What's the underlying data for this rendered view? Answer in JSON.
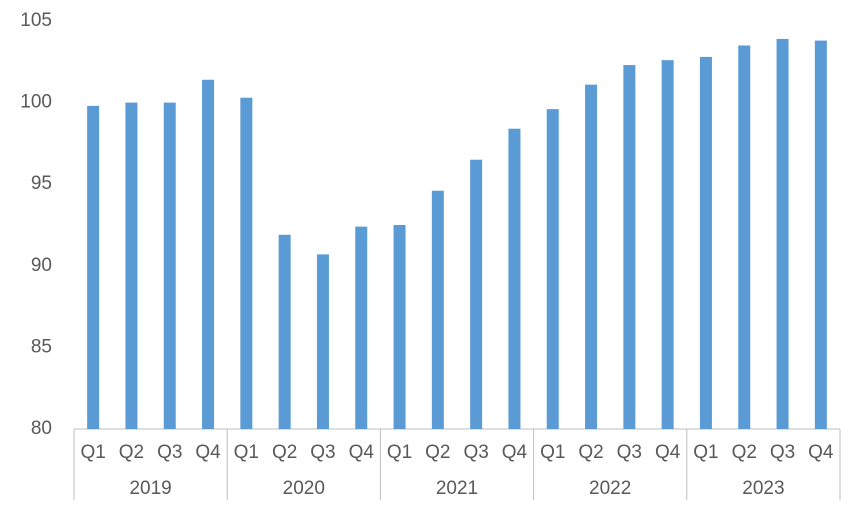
{
  "chart_data": {
    "type": "bar",
    "categories": [
      "Q1",
      "Q2",
      "Q3",
      "Q4",
      "Q1",
      "Q2",
      "Q3",
      "Q4",
      "Q1",
      "Q2",
      "Q3",
      "Q4",
      "Q1",
      "Q2",
      "Q3",
      "Q4",
      "Q1",
      "Q2",
      "Q3",
      "Q4"
    ],
    "groups": [
      "2019",
      "2020",
      "2021",
      "2022",
      "2023"
    ],
    "values": [
      99.8,
      100.0,
      100.0,
      101.4,
      100.3,
      91.9,
      90.7,
      92.4,
      92.5,
      94.6,
      96.5,
      98.4,
      99.6,
      101.1,
      102.3,
      102.6,
      102.8,
      103.5,
      103.9,
      103.8
    ],
    "color": "#5b9bd5",
    "ylim": [
      80,
      105
    ],
    "yticks": [
      80,
      85,
      90,
      95,
      100,
      105
    ],
    "grid": false
  }
}
